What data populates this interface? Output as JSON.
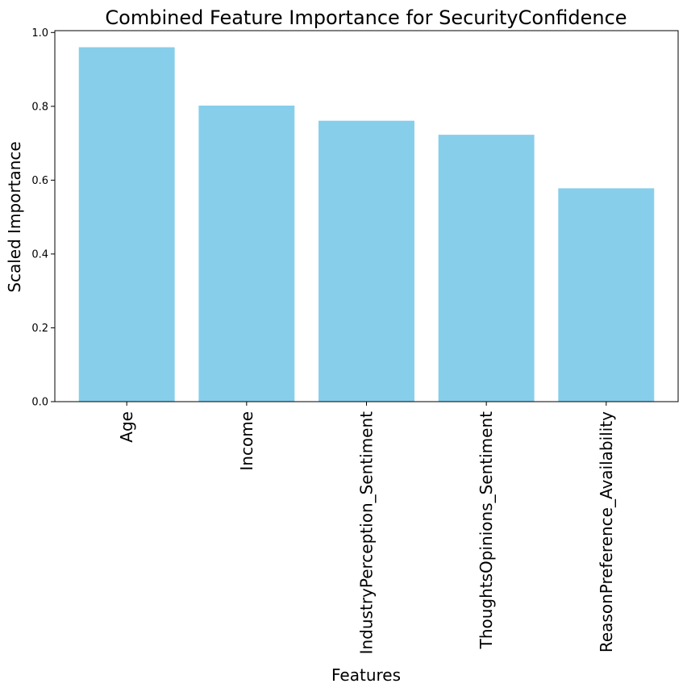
{
  "chart_data": {
    "type": "bar",
    "title": "Combined Feature Importance for SecurityConfidence",
    "xlabel": "Features",
    "ylabel": "Scaled Importance",
    "categories": [
      "Age",
      "Income",
      "IndustryPerception_Sentiment",
      "ThoughtsOpinions_Sentiment",
      "ReasonPreference_Availability"
    ],
    "values": [
      0.96,
      0.802,
      0.761,
      0.723,
      0.578
    ],
    "ylim": [
      0,
      1.005
    ],
    "yticks": [
      "0.0",
      "0.2",
      "0.4",
      "0.6",
      "0.8",
      "1.0"
    ],
    "grid": false,
    "bar_color": "#87CEEB"
  }
}
